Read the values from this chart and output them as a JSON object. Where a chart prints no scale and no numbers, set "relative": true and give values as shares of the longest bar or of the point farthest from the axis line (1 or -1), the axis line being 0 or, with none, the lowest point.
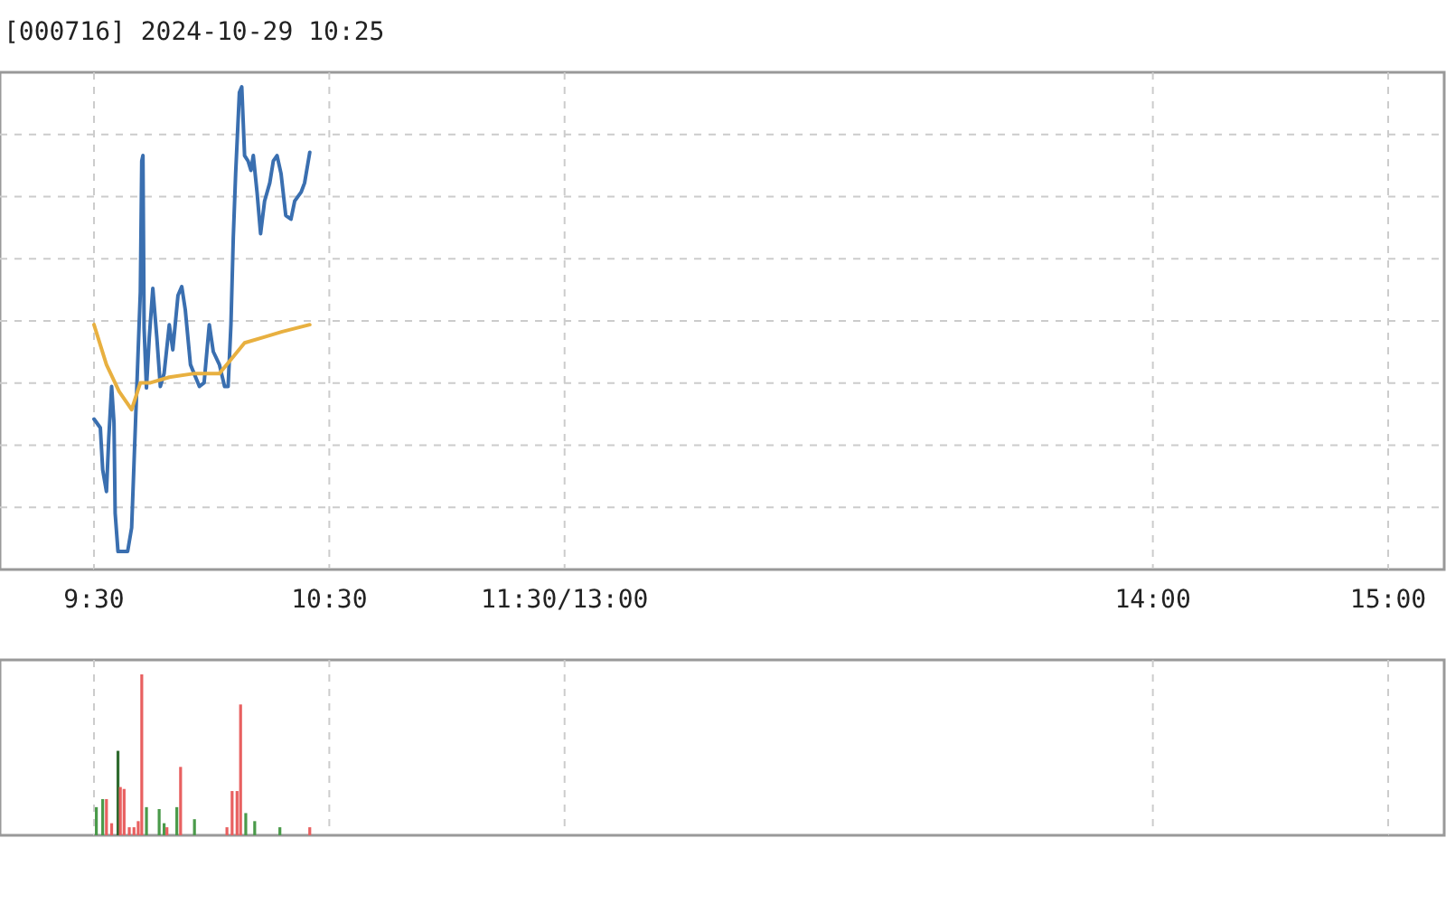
{
  "chart_data": [
    {
      "type": "line",
      "title": "[000716] 2024-10-29 10:25",
      "relative": true,
      "grid": true,
      "xlim": [
        9.5,
        15
      ],
      "xticks": [
        {
          "value": 9.5,
          "label": "9:30"
        },
        {
          "value": 10.5,
          "label": "10:30"
        },
        {
          "value": 11.5,
          "label": "11:30/13:00"
        },
        {
          "value": 14,
          "label": "14:00"
        },
        {
          "value": 15,
          "label": "15:00"
        }
      ],
      "series": [
        {
          "color": "#3a6fb0",
          "x": [
            9.5,
            9.527,
            9.537,
            9.553,
            9.563,
            9.575,
            9.585,
            9.59,
            9.602,
            9.643,
            9.66,
            9.677,
            9.687,
            9.697,
            9.703,
            9.708,
            9.713,
            9.723,
            9.735,
            9.75,
            9.767,
            9.782,
            9.798,
            9.82,
            9.835,
            9.857,
            9.873,
            9.888,
            9.91,
            9.948,
            9.968,
            9.99,
            10.007,
            10.033,
            10.055,
            10.07,
            10.082,
            10.092,
            10.102,
            10.118,
            10.128,
            10.14,
            10.155,
            10.167,
            10.177,
            10.193,
            10.208,
            10.225,
            10.247,
            10.262,
            10.278,
            10.295,
            10.315,
            10.337,
            10.353,
            10.38,
            10.395,
            10.417
          ],
          "values": [
            0.285,
            0.266,
            0.176,
            0.129,
            0.246,
            0.355,
            0.277,
            0.082,
            0,
            0,
            0.051,
            0.285,
            0.422,
            0.559,
            0.84,
            0.852,
            0.48,
            0.352,
            0.461,
            0.566,
            0.461,
            0.355,
            0.383,
            0.488,
            0.434,
            0.551,
            0.57,
            0.52,
            0.402,
            0.355,
            0.363,
            0.488,
            0.43,
            0.402,
            0.355,
            0.355,
            0.488,
            0.676,
            0.813,
            0.988,
            1,
            0.852,
            0.84,
            0.82,
            0.852,
            0.773,
            0.684,
            0.754,
            0.793,
            0.84,
            0.852,
            0.813,
            0.723,
            0.715,
            0.754,
            0.773,
            0.793,
            0.859
          ]
        },
        {
          "color": "#e8b040",
          "x": [
            9.5,
            9.553,
            9.607,
            9.66,
            9.697,
            9.74,
            9.82,
            9.927,
            10.033,
            10.097,
            10.14,
            10.22,
            10.3,
            10.417
          ],
          "values": [
            0.488,
            0.402,
            0.344,
            0.305,
            0.363,
            0.363,
            0.375,
            0.383,
            0.383,
            0.422,
            0.449,
            0.461,
            0.473,
            0.488
          ]
        }
      ]
    },
    {
      "type": "bar",
      "relative": true,
      "grid": "x",
      "tick_labels": false,
      "xlim": [
        9.5,
        15
      ],
      "xticks": [
        9.5,
        10.5,
        11.5,
        14,
        15
      ],
      "x": [
        9.51,
        9.537,
        9.553,
        9.575,
        9.602,
        9.612,
        9.628,
        9.65,
        9.67,
        9.688,
        9.703,
        9.723,
        9.777,
        9.798,
        9.81,
        9.852,
        9.868,
        9.927,
        10.065,
        10.087,
        10.108,
        10.123,
        10.145,
        10.183,
        10.29,
        10.417
      ],
      "values": [
        0.175,
        0.225,
        0.225,
        0.075,
        0.525,
        0.3,
        0.288,
        0.05,
        0.05,
        0.088,
        1,
        0.175,
        0.163,
        0.075,
        0.05,
        0.175,
        0.425,
        0.1,
        0.05,
        0.275,
        0.275,
        0.813,
        0.138,
        0.088,
        0.05,
        0.05
      ],
      "colors": [
        "#4a9a4a",
        "#4a9a4a",
        "#e86060",
        "#e86060",
        "#2f6b2f",
        "#e86060",
        "#e86060",
        "#e86060",
        "#e86060",
        "#e86060",
        "#e86060",
        "#4a9a4a",
        "#4a9a4a",
        "#4a9a4a",
        "#e86060",
        "#4a9a4a",
        "#e86060",
        "#4a9a4a",
        "#e86060",
        "#e86060",
        "#e86060",
        "#e86060",
        "#4a9a4a",
        "#4a9a4a",
        "#4a9a4a",
        "#e86060"
      ]
    }
  ]
}
